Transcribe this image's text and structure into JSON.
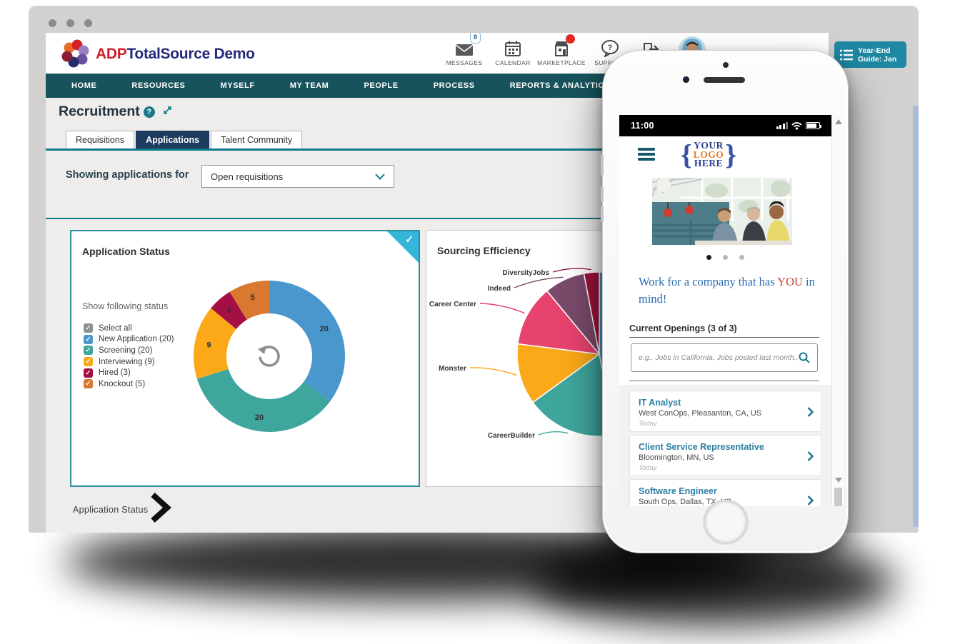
{
  "header": {
    "brand": {
      "adp": "ADP",
      "name": "TotalSource Demo"
    },
    "actions": [
      {
        "id": "messages",
        "label": "MESSAGES",
        "badge": "8"
      },
      {
        "id": "calendar",
        "label": "CALENDAR"
      },
      {
        "id": "marketplace",
        "label": "MARKETPLACE"
      },
      {
        "id": "support",
        "label": "SUPPORT"
      }
    ],
    "year_end": {
      "line1": "Year-End",
      "line2": "Guide: Jan"
    }
  },
  "nav": {
    "items": [
      "HOME",
      "RESOURCES",
      "MYSELF",
      "MY TEAM",
      "PEOPLE",
      "PROCESS",
      "REPORTS & ANALYTICS"
    ]
  },
  "page": {
    "title": "Recruitment",
    "help_glyph": "?",
    "tabs": [
      {
        "label": "Requisitions",
        "active": false
      },
      {
        "label": "Applications",
        "active": true
      },
      {
        "label": "Talent Community",
        "active": false
      }
    ],
    "filter": {
      "label": "Showing applications for",
      "value": "Open requisitions"
    },
    "footer_link": "Application Status"
  },
  "status_card": {
    "title": "Application Status",
    "subtitle": "Show following status",
    "check_glyph": "✓",
    "legend": [
      {
        "label": "Select all",
        "color": "#8a8f94"
      },
      {
        "label": "New Application (20)",
        "color": "#4a97cd"
      },
      {
        "label": "Screening (20)",
        "color": "#3fa69e"
      },
      {
        "label": "Interviewing (9)",
        "color": "#fba919"
      },
      {
        "label": "Hired (3)",
        "color": "#a50f43"
      },
      {
        "label": "Knockout (5)",
        "color": "#d9782f"
      }
    ]
  },
  "sourcing_card": {
    "title": "Sourcing Efficiency"
  },
  "chart_data": [
    {
      "type": "donut",
      "title": "Application Status",
      "series": [
        {
          "label": "New Application",
          "value": 20,
          "color": "#4a97cd"
        },
        {
          "label": "Screening",
          "value": 20,
          "color": "#3fa69e"
        },
        {
          "label": "Interviewing",
          "value": 9,
          "color": "#fba919"
        },
        {
          "label": "Hired",
          "value": 3,
          "color": "#a50f43"
        },
        {
          "label": "Knockout",
          "value": 5,
          "color": "#d9782f"
        }
      ],
      "data_labels": true,
      "center_icon": "refresh",
      "legend_position": "left"
    },
    {
      "type": "pie",
      "title": "Sourcing Efficiency",
      "series": [
        {
          "label": "",
          "value": 47,
          "color": "#4a97cd"
        },
        {
          "label": "CareerBuilder",
          "value": 18,
          "color": "#3fa69e"
        },
        {
          "label": "Monster",
          "value": 12,
          "color": "#fba919"
        },
        {
          "label": "Career Center",
          "value": 12,
          "color": "#e8436f"
        },
        {
          "label": "Indeed",
          "value": 8,
          "color": "#7b4a6b"
        },
        {
          "label": "DiversityJobs",
          "value": 3,
          "color": "#9c1239"
        }
      ],
      "note": "right half of pie occluded by phone overlay; blue slice label not visible"
    }
  ],
  "phone": {
    "time": "11:00",
    "logo": {
      "brace_l": "{",
      "top": "YOUR",
      "mid": "LOGO",
      "bottom": "HERE",
      "brace_r": "}"
    },
    "headline": {
      "part1": "Work for a company that has ",
      "highlight": "YOU",
      "part2": " in mind!"
    },
    "openings_title": "Current Openings (3 of 3)",
    "search_placeholder": "e.g., Jobs in California, Jobs posted last month,...",
    "jobs": [
      {
        "title": "IT Analyst",
        "location": "West ConOps, Pleasanton, CA, US",
        "posted": "Today"
      },
      {
        "title": "Client Service Representative",
        "location": "Bloomington, MN, US",
        "posted": "Today"
      },
      {
        "title": "Software Engineer",
        "location": "South Ops, Dallas, TX, US",
        "posted": ""
      }
    ]
  }
}
